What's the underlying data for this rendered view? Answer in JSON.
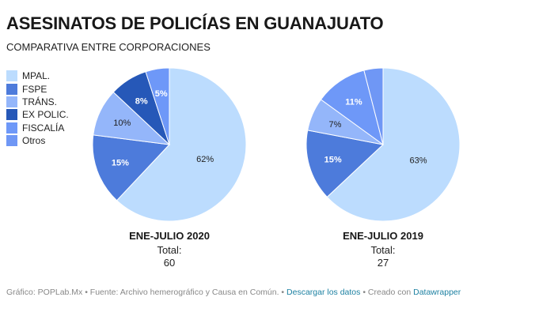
{
  "header": {
    "title": "ASESINATOS DE POLICÍAS EN GUANAJUATO",
    "subtitle": "COMPARATIVA ENTRE CORPORACIONES"
  },
  "legend": [
    {
      "label": "MPAL.",
      "color": "#bcdcfe"
    },
    {
      "label": "FSPE",
      "color": "#4d7bdb"
    },
    {
      "label": "TRÁNS.",
      "color": "#94b6fa"
    },
    {
      "label": "EX POLIC.",
      "color": "#2658b8"
    },
    {
      "label": "FISCALÍA",
      "color": "#6e98f8"
    },
    {
      "label": "Otros",
      "color": "#6f97f5"
    }
  ],
  "chart_data": [
    {
      "type": "pie",
      "title": "ENE-JULIO 2020",
      "total_label": "Total:",
      "total_value": "60",
      "slices": [
        {
          "name": "MPAL.",
          "value": 62,
          "label": "62%",
          "color": "#bcdcfe",
          "label_color": "#222222"
        },
        {
          "name": "FSPE",
          "value": 15,
          "label": "15%",
          "color": "#4d7bdb",
          "label_color": "#ffffff"
        },
        {
          "name": "TRÁNS.",
          "value": 10,
          "label": "10%",
          "color": "#94b6fa",
          "label_color": "#222222"
        },
        {
          "name": "EX POLIC.",
          "value": 8,
          "label": "8%",
          "color": "#2658b8",
          "label_color": "#ffffff"
        },
        {
          "name": "FISCALÍA",
          "value": 5,
          "label": "5%",
          "color": "#6e98f8",
          "label_color": "#ffffff"
        }
      ]
    },
    {
      "type": "pie",
      "title": "ENE-JULIO 2019",
      "total_label": "Total:",
      "total_value": "27",
      "slices": [
        {
          "name": "MPAL.",
          "value": 63,
          "label": "63%",
          "color": "#bcdcfe",
          "label_color": "#222222"
        },
        {
          "name": "FSPE",
          "value": 15,
          "label": "15%",
          "color": "#4d7bdb",
          "label_color": "#ffffff"
        },
        {
          "name": "TRÁNS.",
          "value": 7,
          "label": "7%",
          "color": "#94b6fa",
          "label_color": "#222222"
        },
        {
          "name": "FISCALÍA",
          "value": 11,
          "label": "11%",
          "color": "#6e98f8",
          "label_color": "#ffffff"
        },
        {
          "name": "Otros",
          "value": 4,
          "label": "",
          "color": "#6f97f5",
          "label_color": "#ffffff"
        }
      ]
    }
  ],
  "footer": {
    "prefix": "Gráfico: POPLab.Mx • Fuente: Archivo hemerográfico y Causa en Común. • ",
    "download_link": "Descargar los datos",
    "middle": " • Creado con ",
    "datawrapper_link": "Datawrapper"
  }
}
